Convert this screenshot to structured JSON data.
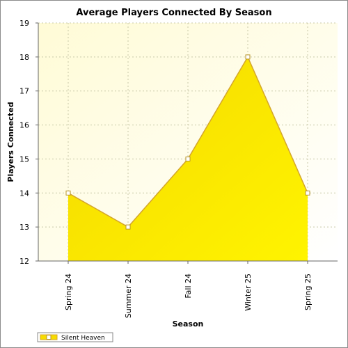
{
  "chart_data": {
    "type": "area",
    "title": "Average Players Connected By Season",
    "xlabel": "Season",
    "ylabel": "Players Connected",
    "categories": [
      "Spring 24",
      "Summer 24",
      "Fall 24",
      "Winter 25",
      "Spring 25"
    ],
    "series": [
      {
        "name": "Silent Heaven",
        "values": [
          14,
          13,
          15,
          18,
          14
        ]
      }
    ],
    "ylim": [
      12,
      19
    ],
    "yticks": [
      12,
      13,
      14,
      15,
      16,
      17,
      18,
      19
    ],
    "grid": true,
    "legend": "bottom-left",
    "colors": {
      "area_light": "#f7dc1a",
      "area_dark": "#ffef00",
      "line": "#d4a62a",
      "plot_bg": "#fffde8",
      "grid": "#c8c8a8"
    }
  }
}
